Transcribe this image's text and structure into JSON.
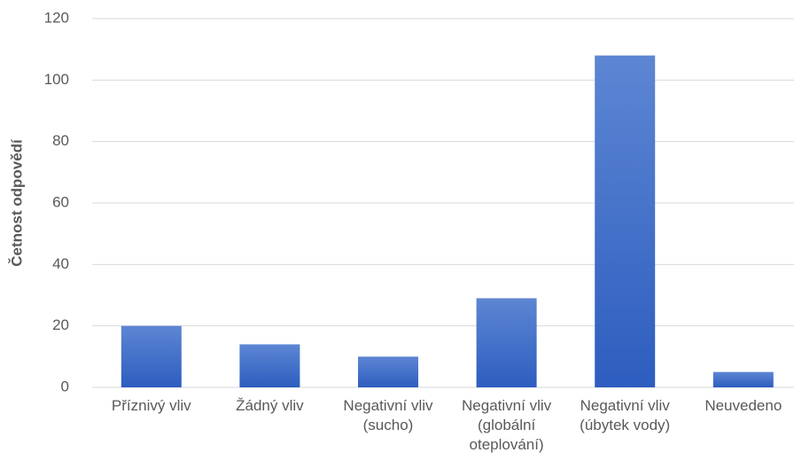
{
  "chart_data": {
    "type": "bar",
    "y_label": "Četnost odpovědí",
    "categories": [
      "Příznivý vliv",
      "Žádný vliv",
      "Negativní vliv (sucho)",
      "Negativní vliv (globální oteplování)",
      "Negativní vliv (úbytek vody)",
      "Neuvedeno"
    ],
    "values": [
      20,
      14,
      10,
      29,
      108,
      5
    ],
    "color": "#4472c4",
    "ylim": [
      0,
      120
    ],
    "yticks": [
      0,
      20,
      40,
      60,
      80,
      100,
      120
    ],
    "grid": true
  }
}
